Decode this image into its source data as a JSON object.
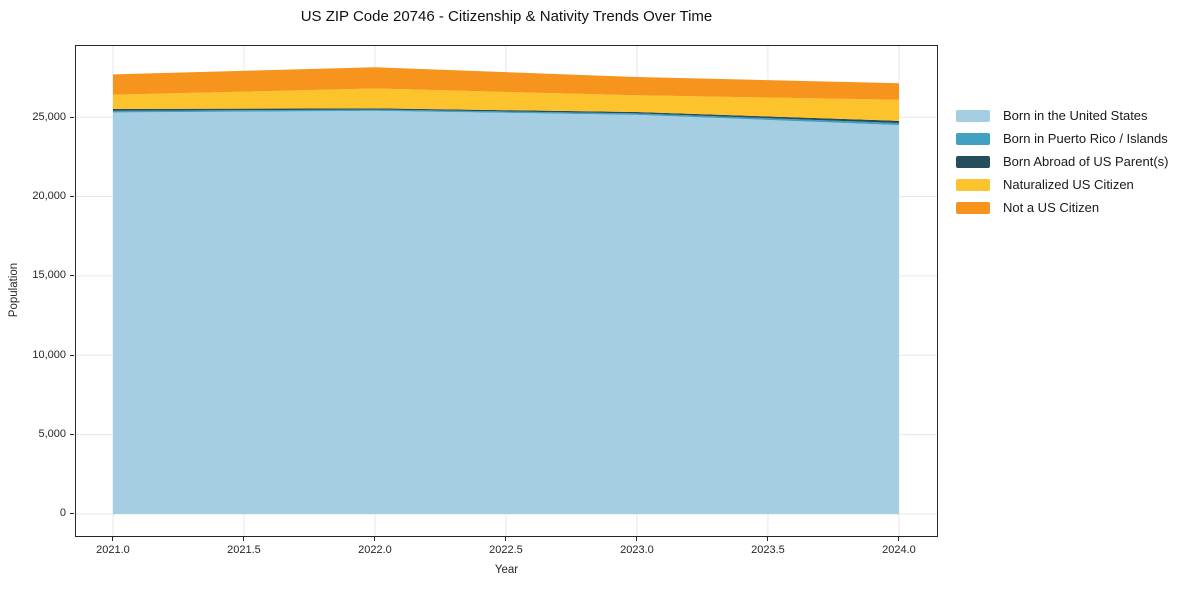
{
  "chart_data": {
    "type": "area",
    "stacked": true,
    "title": "US ZIP Code 20746 - Citizenship & Nativity Trends Over Time",
    "xlabel": "Year",
    "ylabel": "Population",
    "x": [
      2021,
      2022,
      2023,
      2024
    ],
    "series": [
      {
        "id": "born-in-us",
        "name": "Born in the United States",
        "color": "#a6cee3",
        "values": [
          25300,
          25400,
          25150,
          24500
        ]
      },
      {
        "id": "born-pr-islands",
        "name": "Born in Puerto Rico / Islands",
        "color": "#42a1c2",
        "values": [
          100,
          80,
          90,
          130
        ]
      },
      {
        "id": "born-abroad",
        "name": "Born Abroad of US Parent(s)",
        "color": "#264d5c",
        "values": [
          120,
          80,
          90,
          140
        ]
      },
      {
        "id": "naturalized",
        "name": "Naturalized US Citizen",
        "color": "#fdc32d",
        "values": [
          900,
          1250,
          1050,
          1330
        ]
      },
      {
        "id": "not-citizen",
        "name": "Not a US Citizen",
        "color": "#f6941e",
        "values": [
          1280,
          1340,
          1150,
          1040
        ]
      }
    ],
    "totals": [
      27700,
      28150,
      27530,
      27140
    ],
    "x_ticks": [
      {
        "value": 2021.0,
        "label": "2021.0"
      },
      {
        "value": 2021.5,
        "label": "2021.5"
      },
      {
        "value": 2022.0,
        "label": "2022.0"
      },
      {
        "value": 2022.5,
        "label": "2022.5"
      },
      {
        "value": 2023.0,
        "label": "2023.0"
      },
      {
        "value": 2023.5,
        "label": "2023.5"
      },
      {
        "value": 2024.0,
        "label": "2024.0"
      }
    ],
    "y_ticks": [
      {
        "value": 0,
        "label": "0"
      },
      {
        "value": 5000,
        "label": "5,000"
      },
      {
        "value": 10000,
        "label": "10,000"
      },
      {
        "value": 15000,
        "label": "15,000"
      },
      {
        "value": 20000,
        "label": "20,000"
      },
      {
        "value": 25000,
        "label": "25,000"
      }
    ],
    "xlim": [
      2020.855,
      2024.149
    ],
    "ylim": [
      -1450,
      29550
    ],
    "grid": true,
    "gridline_color": "#e7e7e7",
    "axis_color": "#262626",
    "legend_position": "right"
  }
}
